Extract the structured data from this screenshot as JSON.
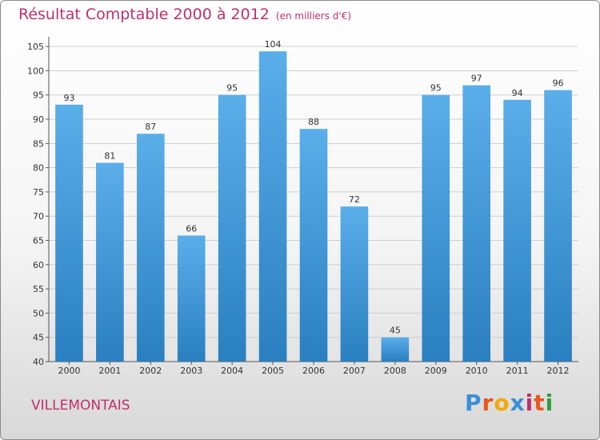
{
  "title": "Résultat Comptable 2000 à 2012",
  "subtitle": "(en milliers d'€)",
  "commune": "VILLEMONTAIS",
  "logo": {
    "text": "Proxiti",
    "letters": [
      "P",
      "r",
      "o",
      "x",
      "i",
      "t",
      "i"
    ],
    "colors": [
      "#3a8fd6",
      "#e8561c",
      "#f2a900",
      "#3a8fd6",
      "#c0306a",
      "#e8561c",
      "#2e9e3a"
    ]
  },
  "colors": {
    "accent": "#c0306a",
    "bar_top": "#5aaeea",
    "bar_bottom": "#2a7fc0",
    "grid": "#cfcfcf"
  },
  "chart_data": {
    "type": "bar",
    "title": "Résultat Comptable 2000 à 2012",
    "xlabel": "",
    "ylabel": "",
    "ylim": [
      40,
      107
    ],
    "yticks": [
      40,
      45,
      50,
      55,
      60,
      65,
      70,
      75,
      80,
      85,
      90,
      95,
      100,
      105
    ],
    "grid": true,
    "categories": [
      "2000",
      "2001",
      "2002",
      "2003",
      "2004",
      "2005",
      "2006",
      "2007",
      "2008",
      "2009",
      "2010",
      "2011",
      "2012"
    ],
    "values": [
      93,
      81,
      87,
      66,
      95,
      104,
      88,
      72,
      45,
      95,
      97,
      94,
      96
    ]
  }
}
